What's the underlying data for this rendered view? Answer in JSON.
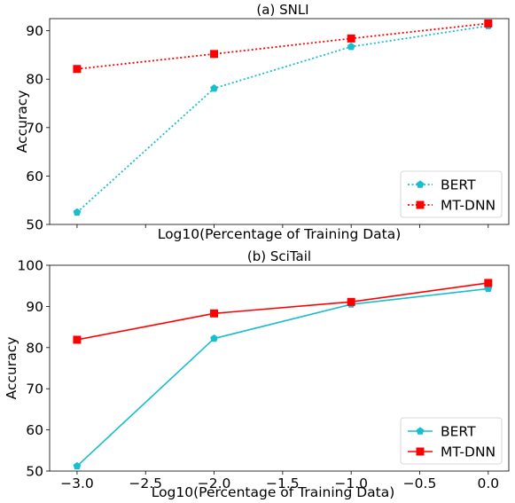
{
  "chart_data": [
    {
      "type": "line",
      "title": "(a) SNLI",
      "xlabel": "Log10(Percentage of Training Data)",
      "ylabel": "Accuracy",
      "x": [
        -3.0,
        -2.0,
        -1.0,
        0.0
      ],
      "xlim": [
        -3.2,
        0.15
      ],
      "ylim": [
        50,
        92.5
      ],
      "y_ticks": [
        50,
        60,
        70,
        80,
        90
      ],
      "x_tick_labels_shown": false,
      "legend_position": "lower-right",
      "grid": false,
      "series": [
        {
          "name": "BERT",
          "values": [
            52.5,
            78.1,
            86.7,
            91.0
          ],
          "color": "#17becf",
          "linestyle": "dotted",
          "marker": "pentagon"
        },
        {
          "name": "MT-DNN",
          "values": [
            82.1,
            85.2,
            88.4,
            91.5
          ],
          "color": "#ff0000",
          "linestyle": "dotted",
          "marker": "square"
        }
      ]
    },
    {
      "type": "line",
      "title": "(b) SciTail",
      "xlabel": "Log10(Percentage of Training Data)",
      "ylabel": "Accuracy",
      "x": [
        -3.0,
        -2.0,
        -1.0,
        0.0
      ],
      "xlim": [
        -3.2,
        0.15
      ],
      "ylim": [
        50,
        100
      ],
      "y_ticks": [
        50,
        60,
        70,
        80,
        90,
        100
      ],
      "x_ticks": [
        "−3.0",
        "−2.5",
        "−2.0",
        "−1.5",
        "−1.0",
        "−0.5",
        "0.0"
      ],
      "x_tick_values": [
        -3.0,
        -2.5,
        -2.0,
        -1.5,
        -1.0,
        -0.5,
        0.0
      ],
      "legend_position": "lower-right",
      "grid": false,
      "series": [
        {
          "name": "BERT",
          "values": [
            51.2,
            82.2,
            90.5,
            94.3
          ],
          "color": "#17becf",
          "linestyle": "solid",
          "marker": "pentagon"
        },
        {
          "name": "MT-DNN",
          "values": [
            81.9,
            88.3,
            91.1,
            95.7
          ],
          "color": "#ff0000",
          "linestyle": "solid",
          "marker": "square"
        }
      ]
    }
  ]
}
